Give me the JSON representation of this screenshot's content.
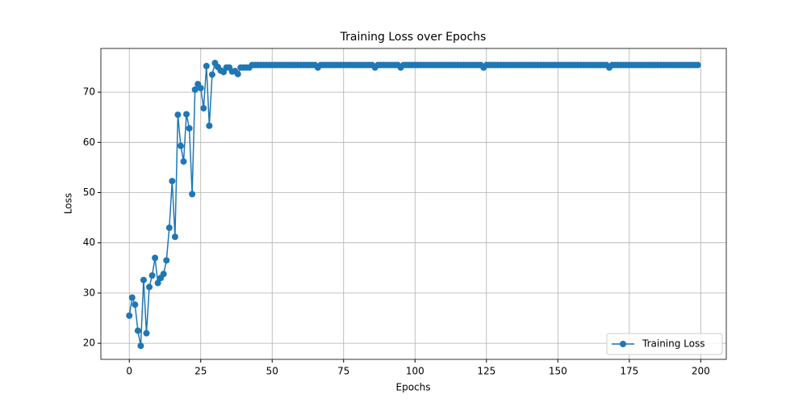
{
  "chart_data": {
    "type": "line",
    "title": "Training Loss over Epochs",
    "x_label": "Epochs",
    "y_label": "Loss",
    "x": [
      0,
      1,
      2,
      3,
      4,
      5,
      6,
      7,
      8,
      9,
      10,
      11,
      12,
      13,
      14,
      15,
      16,
      17,
      18,
      19,
      20,
      21,
      22,
      23,
      24,
      25,
      26,
      27,
      28,
      29,
      30,
      31,
      32,
      33,
      34,
      35,
      36,
      37,
      38,
      39,
      40,
      41,
      42,
      43,
      44,
      45,
      46,
      47,
      48,
      49,
      50,
      51,
      52,
      53,
      54,
      55,
      56,
      57,
      58,
      59,
      60,
      61,
      62,
      63,
      64,
      65,
      66,
      67,
      68,
      69,
      70,
      71,
      72,
      73,
      74,
      75,
      76,
      77,
      78,
      79,
      80,
      81,
      82,
      83,
      84,
      85,
      86,
      87,
      88,
      89,
      90,
      91,
      92,
      93,
      94,
      95,
      96,
      97,
      98,
      99,
      100,
      101,
      102,
      103,
      104,
      105,
      106,
      107,
      108,
      109,
      110,
      111,
      112,
      113,
      114,
      115,
      116,
      117,
      118,
      119,
      120,
      121,
      122,
      123,
      124,
      125,
      126,
      127,
      128,
      129,
      130,
      131,
      132,
      133,
      134,
      135,
      136,
      137,
      138,
      139,
      140,
      141,
      142,
      143,
      144,
      145,
      146,
      147,
      148,
      149,
      150,
      151,
      152,
      153,
      154,
      155,
      156,
      157,
      158,
      159,
      160,
      161,
      162,
      163,
      164,
      165,
      166,
      167,
      168,
      169,
      170,
      171,
      172,
      173,
      174,
      175,
      176,
      177,
      178,
      179,
      180,
      181,
      182,
      183,
      184,
      185,
      186,
      187,
      188,
      189,
      190,
      191,
      192,
      193,
      194,
      195,
      196,
      197,
      198,
      199
    ],
    "series": [
      {
        "name": "Training Loss",
        "color": "#1f77b4",
        "values": [
          25.5,
          29.1,
          27.7,
          22.5,
          19.5,
          32.6,
          22.0,
          31.2,
          33.5,
          37.0,
          32.0,
          33.0,
          33.8,
          36.5,
          43.0,
          52.3,
          41.2,
          65.5,
          59.3,
          56.2,
          65.6,
          62.8,
          49.7,
          70.5,
          71.6,
          70.8,
          66.8,
          75.2,
          63.3,
          73.5,
          75.8,
          75.0,
          74.3,
          74.0,
          74.9,
          74.9,
          74.1,
          74.2,
          73.6,
          74.9,
          74.9,
          74.9,
          74.9,
          75.4,
          75.4,
          75.4,
          75.4,
          75.4,
          75.4,
          75.4,
          75.4,
          75.4,
          75.4,
          75.4,
          75.4,
          75.4,
          75.4,
          75.4,
          75.4,
          75.4,
          75.4,
          75.4,
          75.4,
          75.4,
          75.4,
          75.4,
          74.9,
          75.4,
          75.4,
          75.4,
          75.4,
          75.4,
          75.4,
          75.4,
          75.4,
          75.4,
          75.4,
          75.4,
          75.4,
          75.4,
          75.4,
          75.4,
          75.4,
          75.4,
          75.4,
          75.4,
          74.9,
          75.4,
          75.4,
          75.4,
          75.4,
          75.4,
          75.4,
          75.4,
          75.4,
          74.9,
          75.4,
          75.4,
          75.4,
          75.4,
          75.4,
          75.4,
          75.4,
          75.4,
          75.4,
          75.4,
          75.4,
          75.4,
          75.4,
          75.4,
          75.4,
          75.4,
          75.4,
          75.4,
          75.4,
          75.4,
          75.4,
          75.4,
          75.4,
          75.4,
          75.4,
          75.4,
          75.4,
          75.4,
          74.9,
          75.4,
          75.4,
          75.4,
          75.4,
          75.4,
          75.4,
          75.4,
          75.4,
          75.4,
          75.4,
          75.4,
          75.4,
          75.4,
          75.4,
          75.4,
          75.4,
          75.4,
          75.4,
          75.4,
          75.4,
          75.4,
          75.4,
          75.4,
          75.4,
          75.4,
          75.4,
          75.4,
          75.4,
          75.4,
          75.4,
          75.4,
          75.4,
          75.4,
          75.4,
          75.4,
          75.4,
          75.4,
          75.4,
          75.4,
          75.4,
          75.4,
          75.4,
          75.4,
          74.9,
          75.4,
          75.4,
          75.4,
          75.4,
          75.4,
          75.4,
          75.4,
          75.4,
          75.4,
          75.4,
          75.4,
          75.4,
          75.4,
          75.4,
          75.4,
          75.4,
          75.4,
          75.4,
          75.4,
          75.4,
          75.4,
          75.4,
          75.4,
          75.4,
          75.4,
          75.4,
          75.4,
          75.4,
          75.4,
          75.4,
          75.4
        ]
      }
    ],
    "xlim": [
      -9.95,
      208.95
    ],
    "xticks": [
      0,
      25,
      50,
      75,
      100,
      125,
      150,
      175,
      200
    ],
    "ylim": [
      16.8,
      78.7
    ],
    "yticks": [
      20,
      30,
      40,
      50,
      60,
      70
    ],
    "grid": true,
    "legend": "lower right"
  }
}
